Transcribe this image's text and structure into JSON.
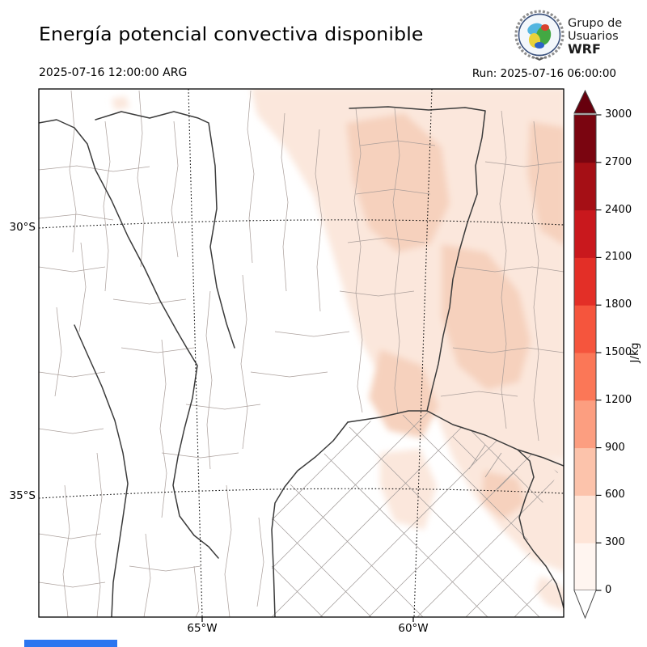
{
  "header": {
    "title": "Energía potencial convectiva disponible",
    "valid_time": "2025-07-16 12:00:00 ARG",
    "run_label": "Run: 2025-07-16 06:00:00",
    "logo": {
      "line1": "Grupo de",
      "line2": "Usuarios",
      "line3": "WRF"
    }
  },
  "map": {
    "lat30": "30°S",
    "lat35": "35°S",
    "lon65": "65°W",
    "lon60": "60°W"
  },
  "colorbar": {
    "unit": "J/kg",
    "ticks": [
      "3000",
      "2700",
      "2400",
      "2100",
      "1800",
      "1500",
      "1200",
      "900",
      "600",
      "300",
      "0"
    ],
    "tick_values": [
      3000,
      2700,
      2400,
      2100,
      1800,
      1500,
      1200,
      900,
      600,
      300,
      0
    ],
    "colors_low_to_high": [
      "#fff5f0",
      "#fee5d8",
      "#fcc3ab",
      "#fc9e80",
      "#fb7757",
      "#f5553d",
      "#e32f27",
      "#c9181d",
      "#a50f15",
      "#7a0510"
    ],
    "over_color": "#67000d",
    "under_color": "#ffffff"
  },
  "shading": {
    "level1": "#fbe7dc",
    "level2": "#f6d1bd"
  },
  "footer": {
    "bar_color": "#2b76f0"
  }
}
